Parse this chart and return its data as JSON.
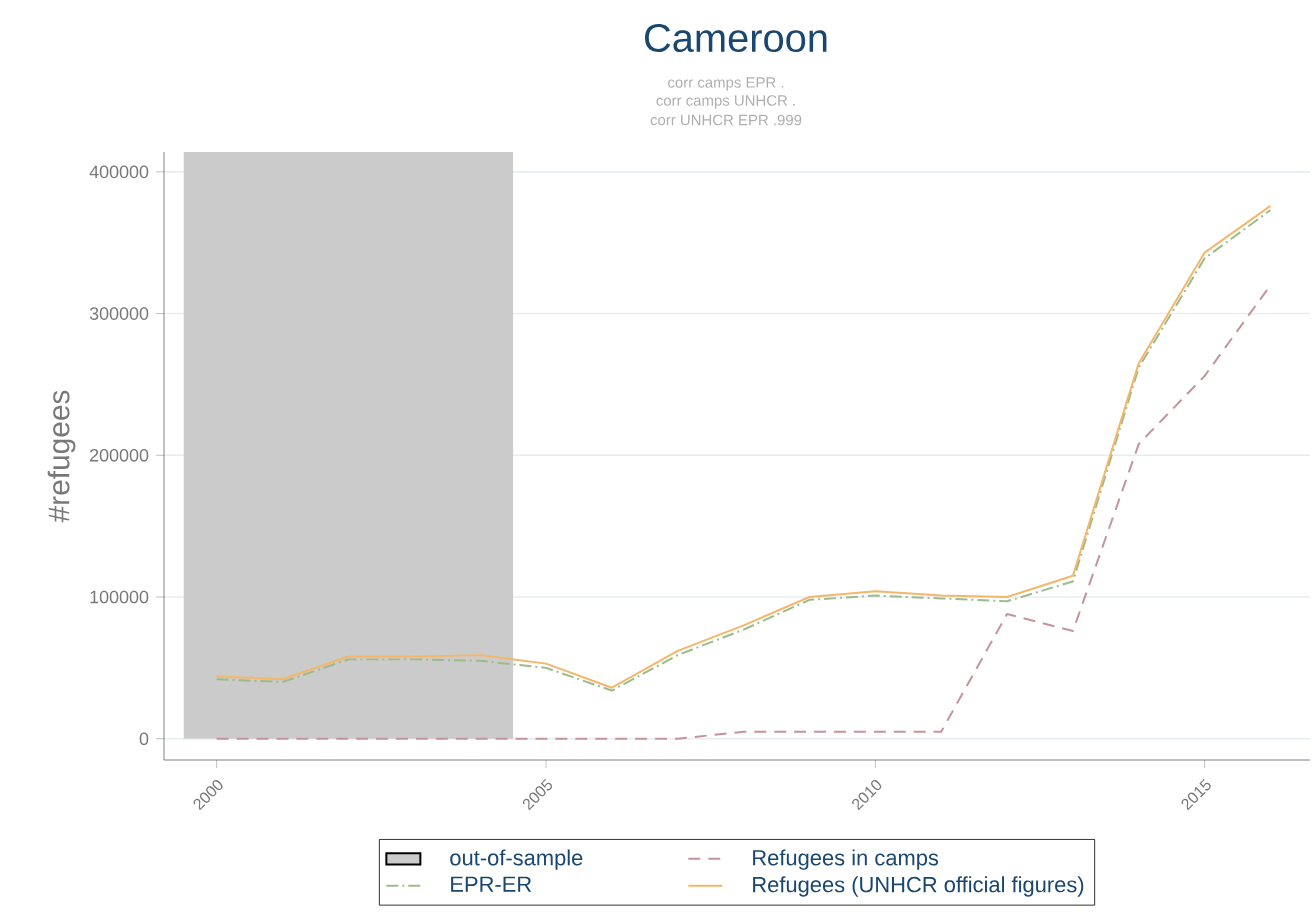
{
  "chart_data": {
    "type": "line",
    "title": "Cameroon",
    "annotations": [
      "corr camps EPR   .",
      "corr camps UNHCR   .",
      "corr UNHCR EPR  .999"
    ],
    "ylabel": "#refugees",
    "xlim": [
      1999.2,
      2016.6
    ],
    "xticks": [
      2000,
      2005,
      2010,
      2015
    ],
    "ylim": [
      -15000,
      414000
    ],
    "yticks": [
      0,
      100000,
      200000,
      300000,
      400000
    ],
    "grid": "y",
    "legend": "bottom",
    "marker": "none",
    "bands": [
      {
        "axis": "x",
        "from": 1999.5,
        "to": 2004.5,
        "label": "out-of-sample",
        "color": "#cbcbcb"
      }
    ],
    "series": [
      {
        "name": "Refugees in camps",
        "color": "#c4939b",
        "line_style": "dashed",
        "x": [
          2000,
          2001,
          2002,
          2003,
          2004,
          2005,
          2006,
          2007,
          2008,
          2009,
          2010,
          2011,
          2012,
          2013,
          2014,
          2015,
          2016
        ],
        "values": [
          0,
          0,
          0,
          0,
          0,
          0,
          0,
          0,
          5000,
          5000,
          5000,
          5000,
          88000,
          76000,
          208000,
          256000,
          320000
        ]
      },
      {
        "name": "EPR-ER",
        "color": "#9dbb8a",
        "line_style": "dashdot",
        "x": [
          2000,
          2001,
          2002,
          2003,
          2004,
          2005,
          2006,
          2007,
          2008,
          2009,
          2010,
          2011,
          2012,
          2013,
          2014,
          2015,
          2016
        ],
        "values": [
          42000,
          40000,
          56000,
          56000,
          55000,
          50000,
          34000,
          59000,
          77000,
          98000,
          101000,
          99000,
          97000,
          111000,
          262000,
          339000,
          373000
        ]
      },
      {
        "name": "Refugees (UNHCR official figures)",
        "color": "#f4b76a",
        "line_style": "solid",
        "x": [
          2000,
          2001,
          2002,
          2003,
          2004,
          2005,
          2006,
          2007,
          2008,
          2009,
          2010,
          2011,
          2012,
          2013,
          2014,
          2015,
          2016
        ],
        "values": [
          44000,
          42000,
          58000,
          58000,
          59000,
          53000,
          36000,
          62000,
          80000,
          100000,
          104000,
          101000,
          100000,
          115000,
          265000,
          343000,
          376000
        ]
      }
    ]
  }
}
